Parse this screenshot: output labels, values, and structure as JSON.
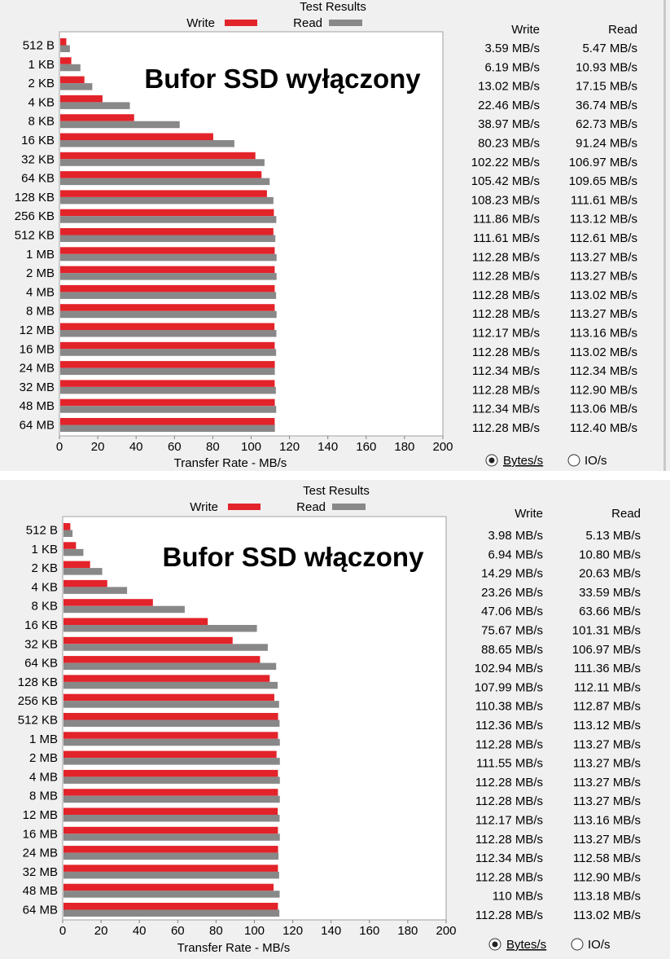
{
  "chart_data": [
    {
      "type": "bar",
      "title": "Test Results",
      "overlay_text": "Bufor SSD wyłączony",
      "xlabel": "Transfer Rate - MB/s",
      "xlim": [
        0,
        200
      ],
      "xticks": [
        "0",
        "20",
        "40",
        "60",
        "80",
        "100",
        "120",
        "140",
        "160",
        "180",
        "200"
      ],
      "categories": [
        "512 B",
        "1 KB",
        "2 KB",
        "4 KB",
        "8 KB",
        "16 KB",
        "32 KB",
        "64 KB",
        "128 KB",
        "256 KB",
        "512 KB",
        "1 MB",
        "2 MB",
        "4 MB",
        "8 MB",
        "12 MB",
        "16 MB",
        "24 MB",
        "32 MB",
        "48 MB",
        "64 MB"
      ],
      "series": [
        {
          "name": "Write",
          "color": "#e3232a",
          "values": [
            3.59,
            6.19,
            13.02,
            22.46,
            38.97,
            80.23,
            102.22,
            105.42,
            108.23,
            111.86,
            111.61,
            112.28,
            112.28,
            112.28,
            112.28,
            112.17,
            112.28,
            112.34,
            112.28,
            112.34,
            112.28
          ],
          "labels": [
            "3.59 MB/s",
            "6.19 MB/s",
            "13.02 MB/s",
            "22.46 MB/s",
            "38.97 MB/s",
            "80.23 MB/s",
            "102.22 MB/s",
            "105.42 MB/s",
            "108.23 MB/s",
            "111.86 MB/s",
            "111.61 MB/s",
            "112.28 MB/s",
            "112.28 MB/s",
            "112.28 MB/s",
            "112.28 MB/s",
            "112.17 MB/s",
            "112.28 MB/s",
            "112.34 MB/s",
            "112.28 MB/s",
            "112.34 MB/s",
            "112.28 MB/s"
          ]
        },
        {
          "name": "Read",
          "color": "#888888",
          "values": [
            5.47,
            10.93,
            17.15,
            36.74,
            62.73,
            91.24,
            106.97,
            109.65,
            111.61,
            113.12,
            112.61,
            113.27,
            113.27,
            113.02,
            113.27,
            113.16,
            113.02,
            112.34,
            112.9,
            113.06,
            112.4
          ],
          "labels": [
            "5.47 MB/s",
            "10.93 MB/s",
            "17.15 MB/s",
            "36.74 MB/s",
            "62.73 MB/s",
            "91.24 MB/s",
            "106.97 MB/s",
            "109.65 MB/s",
            "111.61 MB/s",
            "113.12 MB/s",
            "112.61 MB/s",
            "113.27 MB/s",
            "113.27 MB/s",
            "113.02 MB/s",
            "113.27 MB/s",
            "113.16 MB/s",
            "113.02 MB/s",
            "112.34 MB/s",
            "112.90 MB/s",
            "113.06 MB/s",
            "112.40 MB/s"
          ]
        }
      ],
      "legend_placement": "top",
      "grid": false,
      "radio_options": [
        "Bytes/s",
        "IO/s"
      ],
      "radio_selected": "Bytes/s"
    },
    {
      "type": "bar",
      "title": "Test Results",
      "overlay_text": "Bufor SSD włączony",
      "xlabel": "Transfer Rate - MB/s",
      "xlim": [
        0,
        200
      ],
      "xticks": [
        "0",
        "20",
        "40",
        "60",
        "80",
        "100",
        "120",
        "140",
        "160",
        "180",
        "200"
      ],
      "categories": [
        "512 B",
        "1 KB",
        "2 KB",
        "4 KB",
        "8 KB",
        "16 KB",
        "32 KB",
        "64 KB",
        "128 KB",
        "256 KB",
        "512 KB",
        "1 MB",
        "2 MB",
        "4 MB",
        "8 MB",
        "12 MB",
        "16 MB",
        "24 MB",
        "32 MB",
        "48 MB",
        "64 MB"
      ],
      "series": [
        {
          "name": "Write",
          "color": "#e3232a",
          "values": [
            3.98,
            6.94,
            14.29,
            23.26,
            47.06,
            75.67,
            88.65,
            102.94,
            107.99,
            110.38,
            112.36,
            112.28,
            111.55,
            112.28,
            112.28,
            112.17,
            112.28,
            112.34,
            112.28,
            110,
            112.28
          ],
          "labels": [
            "3.98 MB/s",
            "6.94 MB/s",
            "14.29 MB/s",
            "23.26 MB/s",
            "47.06 MB/s",
            "75.67 MB/s",
            "88.65 MB/s",
            "102.94 MB/s",
            "107.99 MB/s",
            "110.38 MB/s",
            "112.36 MB/s",
            "112.28 MB/s",
            "111.55 MB/s",
            "112.28 MB/s",
            "112.28 MB/s",
            "112.17 MB/s",
            "112.28 MB/s",
            "112.34 MB/s",
            "112.28 MB/s",
            "110 MB/s",
            "112.28 MB/s"
          ]
        },
        {
          "name": "Read",
          "color": "#888888",
          "values": [
            5.13,
            10.8,
            20.63,
            33.59,
            63.66,
            101.31,
            106.97,
            111.36,
            112.11,
            112.87,
            113.12,
            113.27,
            113.27,
            113.27,
            113.27,
            113.16,
            113.27,
            112.58,
            112.9,
            113.18,
            113.02
          ],
          "labels": [
            "5.13 MB/s",
            "10.80 MB/s",
            "20.63 MB/s",
            "33.59 MB/s",
            "63.66 MB/s",
            "101.31 MB/s",
            "106.97 MB/s",
            "111.36 MB/s",
            "112.11 MB/s",
            "112.87 MB/s",
            "113.12 MB/s",
            "113.27 MB/s",
            "113.27 MB/s",
            "113.27 MB/s",
            "113.27 MB/s",
            "113.16 MB/s",
            "113.27 MB/s",
            "112.58 MB/s",
            "112.90 MB/s",
            "113.18 MB/s",
            "113.02 MB/s"
          ]
        }
      ],
      "legend_placement": "top",
      "grid": false,
      "radio_options": [
        "Bytes/s",
        "IO/s"
      ],
      "radio_selected": "Bytes/s"
    }
  ]
}
